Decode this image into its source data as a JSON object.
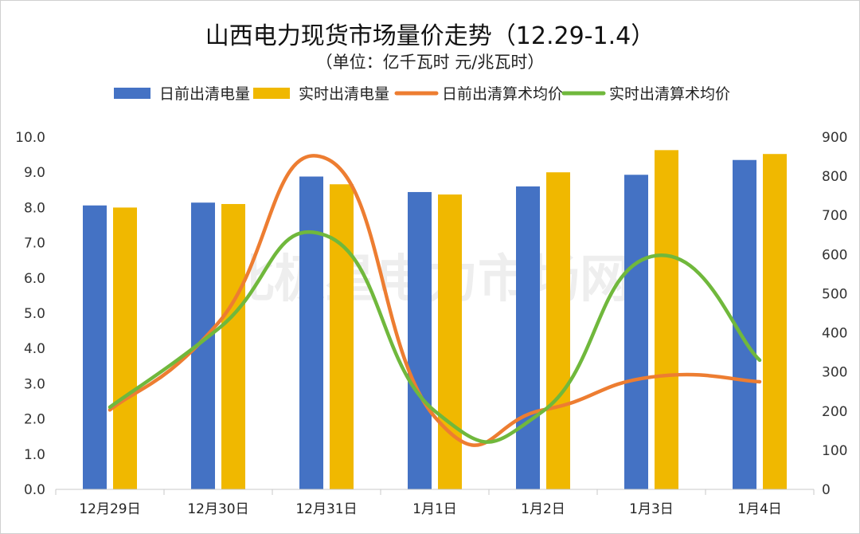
{
  "chart_data": {
    "type": "bar",
    "title": "山西电力现货市场量价走势（12.29-1.4）",
    "subtitle": "（单位：亿千瓦时 元/兆瓦时）",
    "categories": [
      "12月29日",
      "12月30日",
      "12月31日",
      "1月1日",
      "1月2日",
      "1月3日",
      "1月4日"
    ],
    "series": [
      {
        "name": "日前出清电量",
        "kind": "bar",
        "axis": "left",
        "color": "#4472C4",
        "values": [
          8.06,
          8.14,
          8.88,
          8.44,
          8.6,
          8.93,
          9.35
        ]
      },
      {
        "name": "实时出清电量",
        "kind": "bar",
        "axis": "left",
        "color": "#F0B800",
        "values": [
          8.0,
          8.1,
          8.66,
          8.37,
          9.0,
          9.63,
          9.52
        ]
      },
      {
        "name": "日前出清算术均价",
        "kind": "line",
        "axis": "right",
        "color": "#ED7D31",
        "values": [
          203,
          425,
          845,
          185,
          203,
          287,
          275
        ]
      },
      {
        "name": "实时出清算术均价",
        "kind": "line",
        "axis": "right",
        "color": "#70B83C",
        "values": [
          210,
          410,
          648,
          200,
          200,
          595,
          330
        ]
      }
    ],
    "y_left": {
      "range": [
        0,
        10
      ],
      "step": 1,
      "ticks": [
        "0.0",
        "1.0",
        "2.0",
        "3.0",
        "4.0",
        "5.0",
        "6.0",
        "7.0",
        "8.0",
        "9.0",
        "10.0"
      ]
    },
    "y_right": {
      "range": [
        0,
        900
      ],
      "step": 100,
      "ticks": [
        "0",
        "100",
        "200",
        "300",
        "400",
        "500",
        "600",
        "700",
        "800",
        "900"
      ]
    },
    "legend": "top",
    "grid": false,
    "watermark": "北极星电力市场网"
  }
}
